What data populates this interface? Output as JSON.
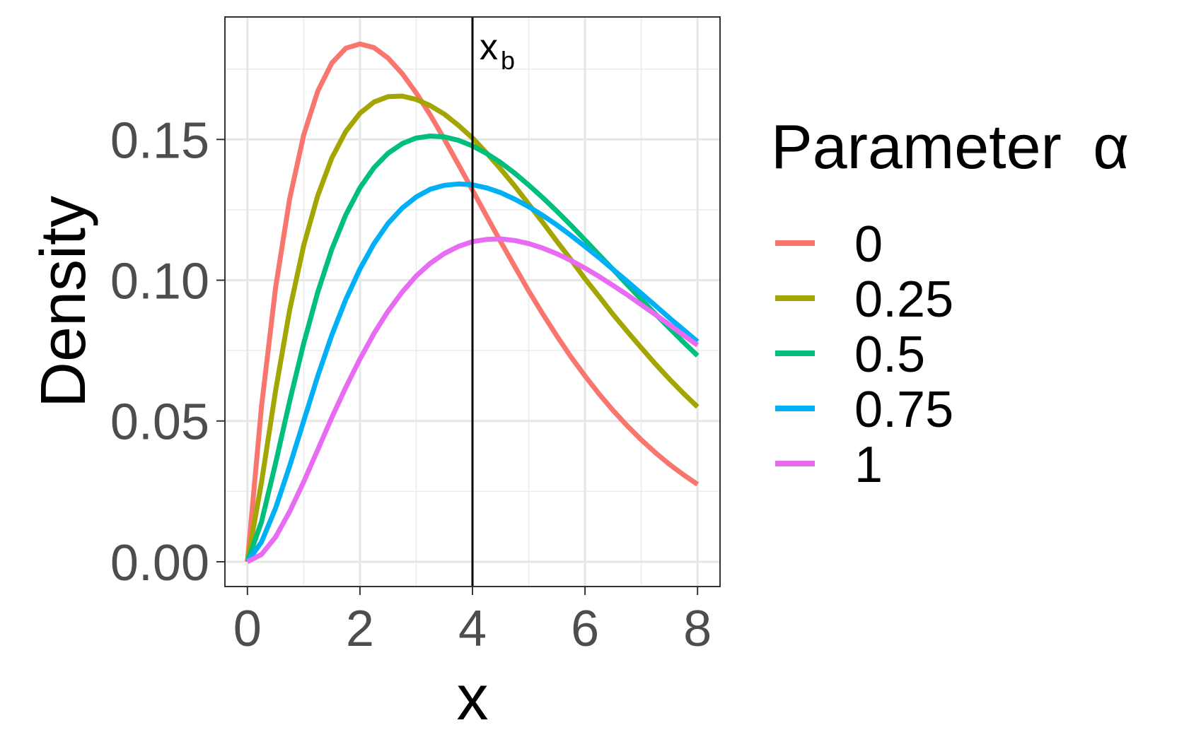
{
  "chart_data": {
    "type": "line",
    "xlabel": "x",
    "ylabel": "Density",
    "xlim": [
      -0.4,
      8.4
    ],
    "ylim": [
      -0.0088,
      0.1935
    ],
    "x_ticks": [
      "0",
      "2",
      "4",
      "6",
      "8"
    ],
    "x_tick_values": [
      0,
      2,
      4,
      6,
      8
    ],
    "y_ticks": [
      "0.00",
      "0.05",
      "0.10",
      "0.15"
    ],
    "y_tick_values": [
      0,
      0.05,
      0.1,
      0.15
    ],
    "grid": true,
    "legend": {
      "title_text": "Parameter",
      "title_symbol": "α",
      "placement": "right"
    },
    "annotation": {
      "x": 4,
      "label_main": "x",
      "label_sub": "b",
      "line_color": "#000000"
    },
    "series": [
      {
        "name": "0",
        "color": "#F8766D",
        "x": [
          0,
          0.25,
          0.5,
          0.75,
          1,
          1.25,
          1.5,
          1.75,
          2,
          2.25,
          2.5,
          2.75,
          3,
          3.25,
          3.5,
          3.75,
          4,
          4.25,
          4.5,
          4.75,
          5,
          5.25,
          5.5,
          5.75,
          6,
          6.25,
          6.5,
          6.75,
          7,
          7.25,
          7.5,
          7.75,
          8
        ],
        "y": [
          0,
          0.0551,
          0.0973,
          0.1289,
          0.1516,
          0.1672,
          0.1771,
          0.1824,
          0.1839,
          0.1826,
          0.1789,
          0.1734,
          0.1665,
          0.1587,
          0.1501,
          0.1411,
          0.132,
          0.1228,
          0.1137,
          0.1049,
          0.0962,
          0.088,
          0.0802,
          0.0728,
          0.066,
          0.0596,
          0.0537,
          0.0483,
          0.0433,
          0.0388,
          0.0346,
          0.0309,
          0.0275
        ]
      },
      {
        "name": "0.25",
        "color": "#A3A500",
        "x": [
          0,
          0.25,
          0.5,
          0.75,
          1,
          1.25,
          1.5,
          1.75,
          2,
          2.25,
          2.5,
          2.75,
          3,
          3.25,
          3.5,
          3.75,
          4,
          4.25,
          4.5,
          4.75,
          5,
          5.25,
          5.5,
          5.75,
          6,
          6.25,
          6.5,
          6.75,
          7,
          7.25,
          7.5,
          7.75,
          8
        ],
        "y": [
          0,
          0.0282,
          0.0607,
          0.0894,
          0.1124,
          0.1301,
          0.1434,
          0.1529,
          0.1593,
          0.1633,
          0.1652,
          0.1654,
          0.1642,
          0.162,
          0.159,
          0.155,
          0.1505,
          0.1452,
          0.1395,
          0.1335,
          0.127,
          0.1205,
          0.1138,
          0.1073,
          0.1005,
          0.0942,
          0.0878,
          0.0818,
          0.076,
          0.0703,
          0.0649,
          0.0598,
          0.055
        ]
      },
      {
        "name": "0.5",
        "color": "#00BF7D",
        "x": [
          0,
          0.25,
          0.5,
          0.75,
          1,
          1.25,
          1.5,
          1.75,
          2,
          2.25,
          2.5,
          2.75,
          3,
          3.25,
          3.5,
          3.75,
          4,
          4.25,
          4.5,
          4.75,
          5,
          5.25,
          5.5,
          5.75,
          6,
          6.25,
          6.5,
          6.75,
          7,
          7.25,
          7.5,
          7.75,
          8
        ],
        "y": [
          0,
          0.0142,
          0.035,
          0.057,
          0.0776,
          0.0958,
          0.111,
          0.1233,
          0.1328,
          0.14,
          0.1451,
          0.1485,
          0.1505,
          0.1512,
          0.1509,
          0.1497,
          0.1477,
          0.145,
          0.1418,
          0.138,
          0.1338,
          0.1293,
          0.1245,
          0.1195,
          0.1143,
          0.109,
          0.1038,
          0.0984,
          0.0932,
          0.088,
          0.083,
          0.078,
          0.0732
        ]
      },
      {
        "name": "0.75",
        "color": "#00B0F6",
        "x": [
          0,
          0.25,
          0.5,
          0.75,
          1,
          1.25,
          1.5,
          1.75,
          2,
          2.25,
          2.5,
          2.75,
          3,
          3.25,
          3.5,
          3.75,
          4,
          4.25,
          4.5,
          4.75,
          5,
          5.25,
          5.5,
          5.75,
          6,
          6.25,
          6.5,
          6.75,
          7,
          7.25,
          7.5,
          7.75,
          8
        ],
        "y": [
          0,
          0.007,
          0.019,
          0.034,
          0.05,
          0.066,
          0.0805,
          0.0932,
          0.104,
          0.113,
          0.1202,
          0.1256,
          0.1296,
          0.1323,
          0.1337,
          0.1342,
          0.1339,
          0.1328,
          0.1311,
          0.1288,
          0.1261,
          0.123,
          0.1196,
          0.1159,
          0.112,
          0.108,
          0.1038,
          0.0996,
          0.0953,
          0.091,
          0.0866,
          0.0824,
          0.0782
        ]
      },
      {
        "name": "1",
        "color": "#E76BF3",
        "x": [
          0,
          0.25,
          0.5,
          0.75,
          1,
          1.25,
          1.5,
          1.75,
          2,
          2.25,
          2.5,
          2.75,
          3,
          3.25,
          3.5,
          3.75,
          4,
          4.25,
          4.5,
          4.75,
          5,
          5.25,
          5.5,
          5.75,
          6,
          6.25,
          6.5,
          6.75,
          7,
          7.25,
          7.5,
          7.75,
          8
        ],
        "y": [
          0,
          0.0026,
          0.0088,
          0.0178,
          0.0284,
          0.0398,
          0.0512,
          0.062,
          0.072,
          0.0811,
          0.089,
          0.0958,
          0.1015,
          0.106,
          0.1095,
          0.112,
          0.1137,
          0.1145,
          0.1147,
          0.1141,
          0.113,
          0.1114,
          0.1094,
          0.107,
          0.1043,
          0.1013,
          0.0981,
          0.0948,
          0.0913,
          0.0878,
          0.0842,
          0.0805,
          0.0769
        ]
      }
    ]
  }
}
